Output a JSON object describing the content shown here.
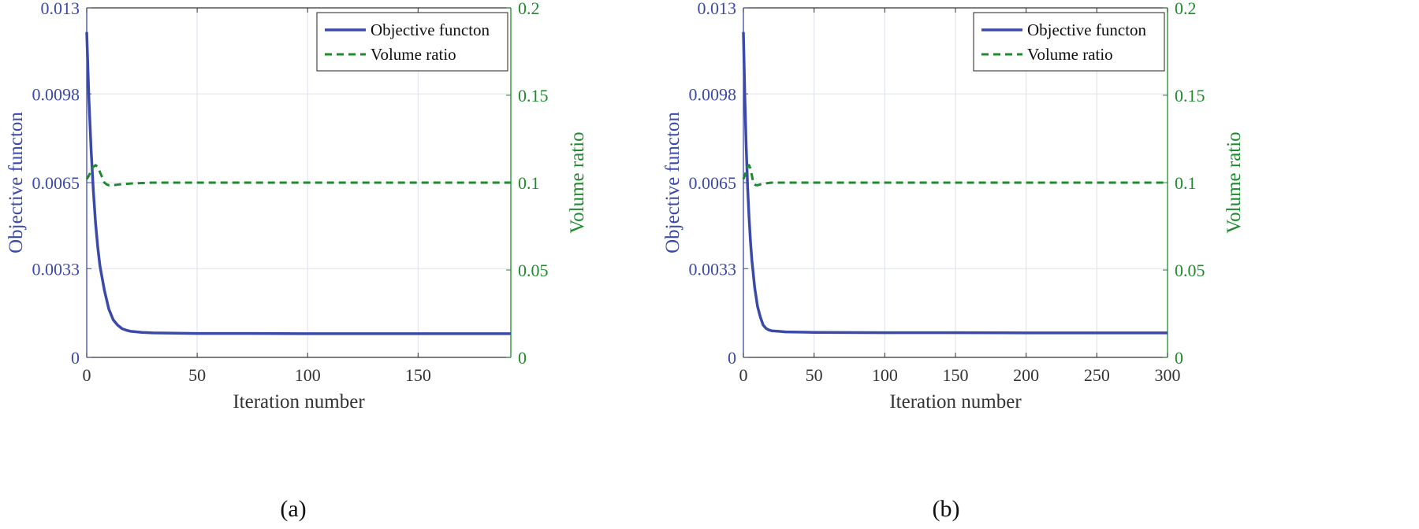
{
  "colors": {
    "objective": "#3b4aa8",
    "volume": "#1f8a2e",
    "grid": "#dde1ee",
    "axis": "#333333"
  },
  "chart_data": [
    {
      "type": "line",
      "panel_label": "(a)",
      "xlabel": "Iteration number",
      "ylabel_left": "Objective functon",
      "ylabel_right": "Volume ratio",
      "xlim": [
        0,
        192
      ],
      "xticks": [
        0,
        50,
        100,
        150
      ],
      "xtick_labels": [
        "0",
        "50",
        "100",
        "150"
      ],
      "ylim_left": [
        0,
        0.013
      ],
      "yticks_left": [
        0,
        0.0033,
        0.0065,
        0.0098,
        0.013
      ],
      "ytick_labels_left": [
        "0",
        "0.0033",
        "0.0065",
        "0.0098",
        "0.013"
      ],
      "ylim_right": [
        0,
        0.2
      ],
      "yticks_right": [
        0,
        0.05,
        0.1,
        0.15,
        0.2
      ],
      "ytick_labels_right": [
        "0",
        "0.05",
        "0.1",
        "0.15",
        "0.2"
      ],
      "grid": true,
      "legend_position": "top-right",
      "series": [
        {
          "name": "Objective functon",
          "axis": "left",
          "style": "solid",
          "x": [
            0,
            1,
            2,
            3,
            4,
            5,
            6,
            8,
            10,
            12,
            14,
            16,
            18,
            20,
            25,
            30,
            40,
            50,
            75,
            100,
            150,
            192
          ],
          "y": [
            0.0121,
            0.0096,
            0.0077,
            0.0062,
            0.005,
            0.0041,
            0.0034,
            0.0025,
            0.0018,
            0.0014,
            0.0012,
            0.00107,
            0.00101,
            0.00097,
            0.00093,
            0.00091,
            0.0009,
            0.00089,
            0.00089,
            0.00088,
            0.00088,
            0.00088
          ]
        },
        {
          "name": "Volume ratio",
          "axis": "right",
          "style": "dashed",
          "x": [
            0,
            1,
            2,
            3,
            4,
            5,
            6,
            7,
            8,
            9,
            10,
            12,
            15,
            20,
            30,
            50,
            100,
            150,
            192
          ],
          "y": [
            0.102,
            0.104,
            0.107,
            0.109,
            0.11,
            0.109,
            0.106,
            0.103,
            0.1,
            0.099,
            0.0985,
            0.0985,
            0.099,
            0.0995,
            0.1,
            0.1,
            0.1,
            0.1,
            0.1
          ]
        }
      ]
    },
    {
      "type": "line",
      "panel_label": "(b)",
      "xlabel": "Iteration number",
      "ylabel_left": "Objective functon",
      "ylabel_right": "Volume ratio",
      "xlim": [
        0,
        300
      ],
      "xticks": [
        0,
        50,
        100,
        150,
        200,
        250,
        300
      ],
      "xtick_labels": [
        "0",
        "50",
        "100",
        "150",
        "200",
        "250",
        "300"
      ],
      "ylim_left": [
        0,
        0.013
      ],
      "yticks_left": [
        0,
        0.0033,
        0.0065,
        0.0098,
        0.013
      ],
      "ytick_labels_left": [
        "0",
        "0.0033",
        "0.0065",
        "0.0098",
        "0.013"
      ],
      "ylim_right": [
        0,
        0.2
      ],
      "yticks_right": [
        0,
        0.05,
        0.1,
        0.15,
        0.2
      ],
      "ytick_labels_right": [
        "0",
        "0.05",
        "0.1",
        "0.15",
        "0.2"
      ],
      "grid": true,
      "legend_position": "top-right",
      "series": [
        {
          "name": "Objective functon",
          "axis": "left",
          "style": "solid",
          "x": [
            0,
            1,
            2,
            3,
            4,
            5,
            6,
            8,
            10,
            12,
            14,
            16,
            18,
            20,
            25,
            30,
            40,
            50,
            100,
            150,
            200,
            250,
            300
          ],
          "y": [
            0.0121,
            0.0097,
            0.0078,
            0.0063,
            0.0052,
            0.0043,
            0.0036,
            0.0026,
            0.0019,
            0.0015,
            0.0012,
            0.00108,
            0.00102,
            0.00099,
            0.00097,
            0.00095,
            0.00094,
            0.00093,
            0.00092,
            0.00092,
            0.00091,
            0.00091,
            0.00091
          ]
        },
        {
          "name": "Volume ratio",
          "axis": "right",
          "style": "dashed",
          "x": [
            0,
            1,
            2,
            3,
            4,
            5,
            6,
            7,
            8,
            9,
            10,
            12,
            15,
            20,
            30,
            50,
            100,
            150,
            200,
            250,
            300
          ],
          "y": [
            0.102,
            0.104,
            0.107,
            0.109,
            0.11,
            0.108,
            0.104,
            0.1,
            0.099,
            0.0985,
            0.0985,
            0.099,
            0.0995,
            0.1,
            0.1,
            0.1,
            0.1,
            0.1,
            0.1,
            0.1,
            0.1
          ]
        }
      ]
    }
  ]
}
